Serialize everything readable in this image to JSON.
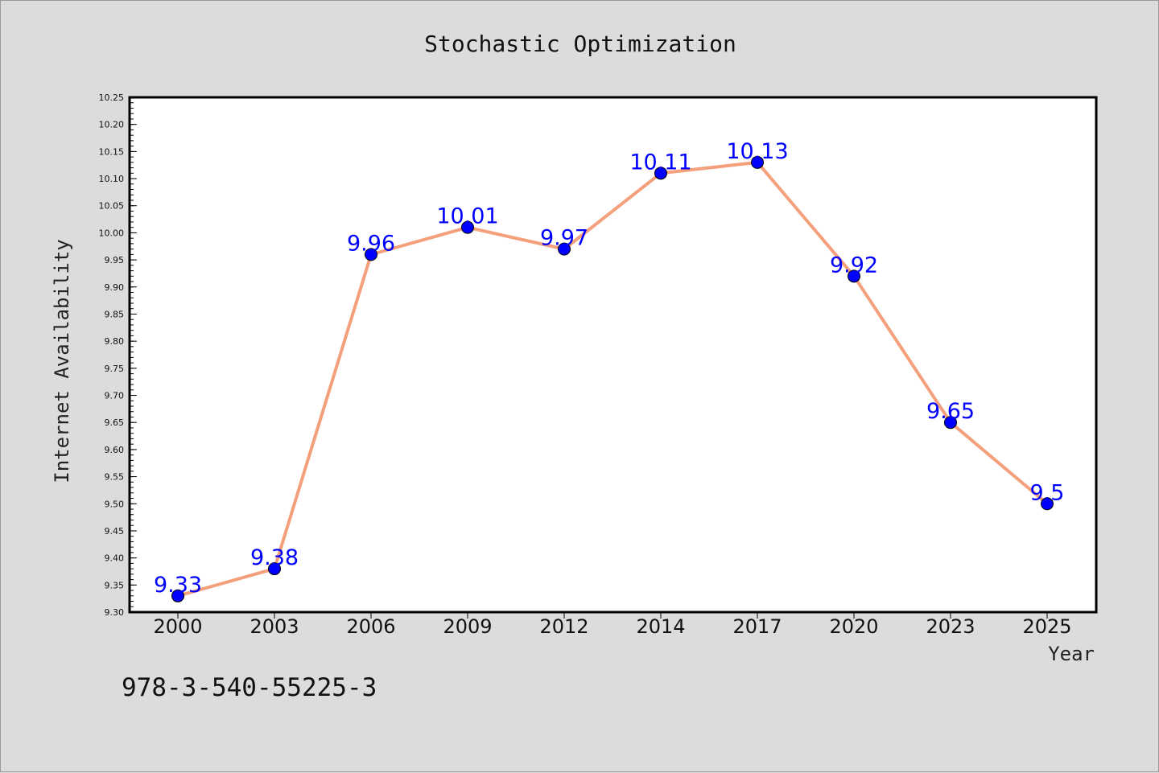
{
  "chart_data": {
    "type": "line",
    "title": "Stochastic Optimization",
    "xlabel": "Year",
    "ylabel": "Internet Availability",
    "categories": [
      "2000",
      "2003",
      "2006",
      "2009",
      "2012",
      "2014",
      "2017",
      "2020",
      "2023",
      "2025"
    ],
    "series": [
      {
        "values": [
          9.33,
          9.38,
          9.96,
          10.01,
          9.97,
          10.11,
          10.13,
          9.92,
          9.65,
          9.5
        ],
        "labels": [
          "9.33",
          "9.38",
          "9.96",
          "10.01",
          "9.97",
          "10.11",
          "10.13",
          "9.92",
          "9.65",
          "9.5"
        ],
        "line_color": "#f4a07c",
        "marker_color": "#0000ff",
        "label_color": "#0000ff"
      }
    ],
    "ylim": [
      9.3,
      10.25
    ],
    "yticks": [
      "9.30",
      "9.35",
      "9.40",
      "9.45",
      "9.50",
      "9.55",
      "9.60",
      "9.65",
      "9.70",
      "9.75",
      "9.80",
      "9.85",
      "9.90",
      "9.95",
      "10.00",
      "10.05",
      "10.10",
      "10.15",
      "10.20",
      "10.25"
    ],
    "grid": false,
    "legend": "none"
  },
  "annotation": {
    "isbn": "978-3-540-55225-3"
  },
  "colors": {
    "background": "#dcdcdc",
    "plot_background": "#ffffff",
    "axis": "#000000"
  }
}
